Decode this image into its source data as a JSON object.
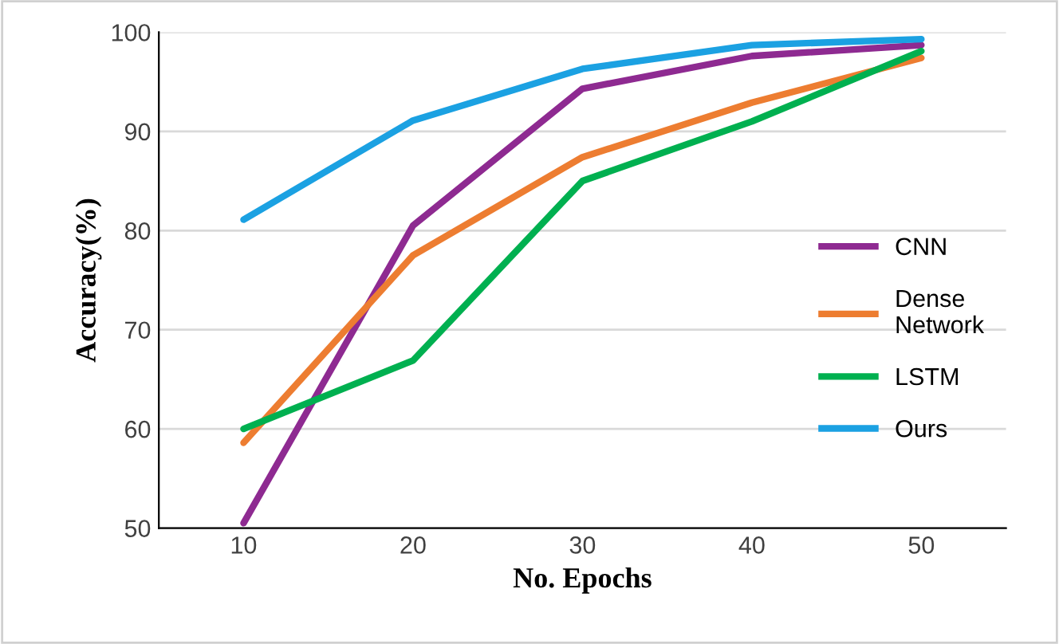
{
  "chart_data": {
    "type": "line",
    "xlabel": "No. Epochs",
    "ylabel": "Accuracy(%)",
    "categories": [
      "10",
      "20",
      "30",
      "40",
      "50"
    ],
    "series": [
      {
        "name": "CNN",
        "color": "#8e2a91",
        "values": [
          50.5,
          80.5,
          94.3,
          97.6,
          98.7
        ]
      },
      {
        "name": "Dense Network",
        "color": "#ed7d31",
        "values": [
          58.6,
          77.5,
          87.4,
          92.9,
          97.4
        ]
      },
      {
        "name": "LSTM",
        "color": "#00b050",
        "values": [
          60,
          66.9,
          85,
          91,
          98.1
        ]
      },
      {
        "name": "Ours",
        "color": "#1ba1e2",
        "values": [
          81.1,
          91.1,
          96.3,
          98.7,
          99.3
        ]
      }
    ],
    "ylim": [
      50,
      100
    ],
    "yticks": [
      50,
      60,
      70,
      80,
      90,
      100
    ],
    "grid": "y",
    "legend": "right",
    "marker": "none",
    "line_style": "solid"
  }
}
